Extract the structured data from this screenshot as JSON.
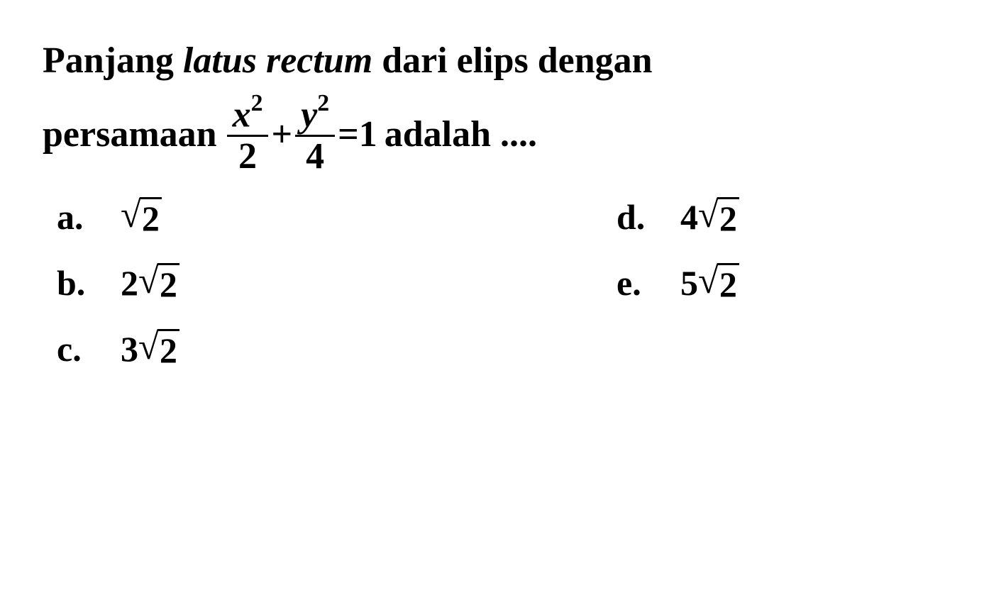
{
  "question": {
    "line1_part1": "Panjang ",
    "line1_italic": "latus rectum",
    "line1_part2": " dari elips dengan",
    "line2_part1": "persamaan ",
    "line2_part2": " adalah ...."
  },
  "equation": {
    "frac1_num_base": "x",
    "frac1_num_exp": "2",
    "frac1_den": "2",
    "plus": "+",
    "frac2_num_base": "y",
    "frac2_num_exp": "2",
    "frac2_den": "4",
    "equals": "=",
    "rhs": "1"
  },
  "options": {
    "a": {
      "label": "a.",
      "coef": "",
      "radicand": "2"
    },
    "b": {
      "label": "b.",
      "coef": "2",
      "radicand": "2"
    },
    "c": {
      "label": "c.",
      "coef": "3",
      "radicand": "2"
    },
    "d": {
      "label": "d.",
      "coef": "4",
      "radicand": "2"
    },
    "e": {
      "label": "e.",
      "coef": "5",
      "radicand": "2"
    }
  },
  "style": {
    "background_color": "#ffffff",
    "text_color": "#000000",
    "font_family": "Times New Roman",
    "question_fontsize": 52,
    "option_fontsize": 50,
    "font_weight": "bold"
  }
}
